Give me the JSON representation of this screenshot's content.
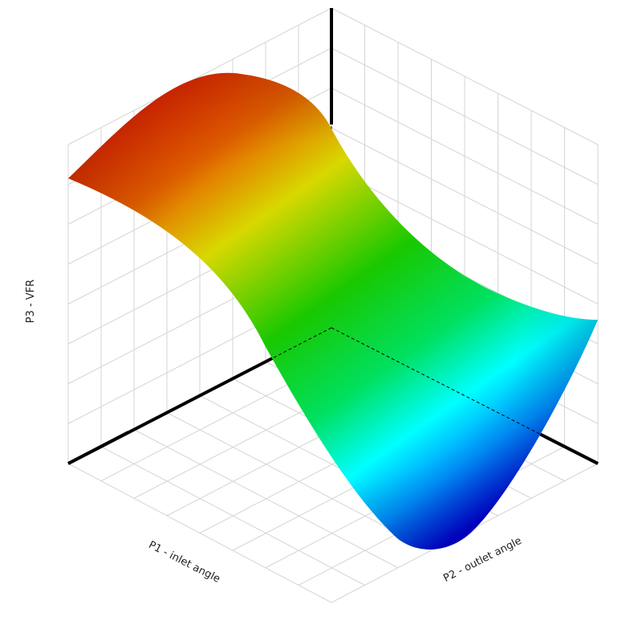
{
  "chart_data": {
    "type": "surface",
    "xlabel": "P1 -  inlet angle",
    "ylabel": "P2 - outlet angle",
    "zlabel": "P3 - VFR"
  }
}
